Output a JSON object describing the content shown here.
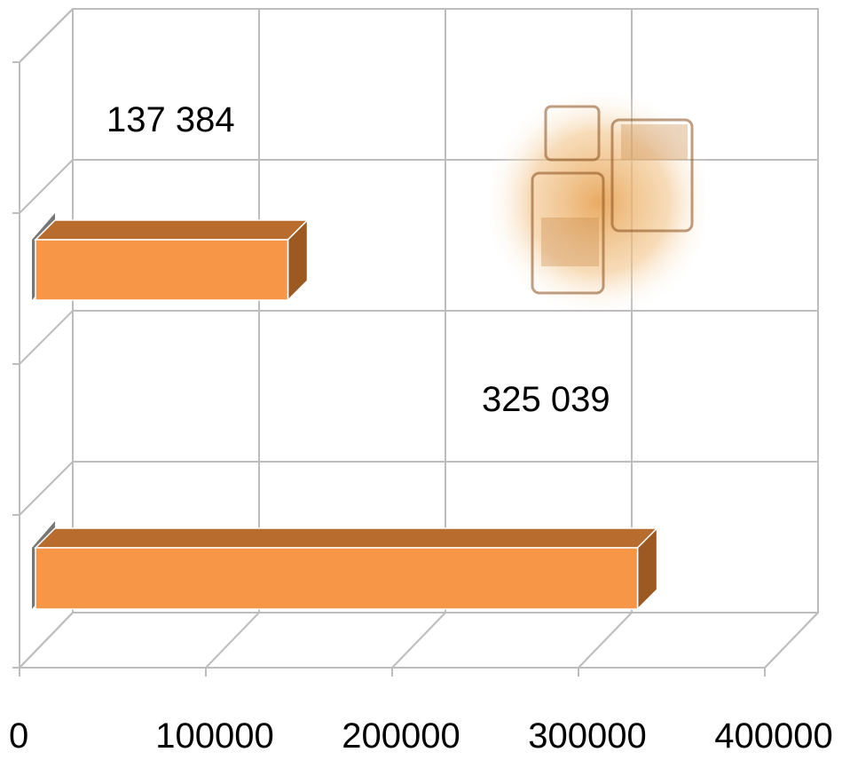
{
  "chart_data": {
    "type": "bar",
    "orientation": "horizontal",
    "three_d": true,
    "categories": [
      "",
      ""
    ],
    "series": [
      {
        "values": [
          137384,
          325039
        ],
        "data_labels": [
          "137  384",
          "325  039"
        ]
      }
    ],
    "xlim": [
      0,
      400000
    ],
    "x_ticks": [
      0,
      100000,
      200000,
      300000,
      400000
    ],
    "x_tick_labels": [
      "0",
      "100000",
      "200000",
      "300000",
      "400000"
    ],
    "title": "",
    "xlabel": "",
    "ylabel": "",
    "grid": true,
    "legend": "none",
    "colors": {
      "bar_front": "#f79646",
      "bar_top": "#b86d2f",
      "bar_side": "#9c5a22",
      "grid": "#bdbdbd"
    },
    "decoration": "gold-bars-photo"
  }
}
